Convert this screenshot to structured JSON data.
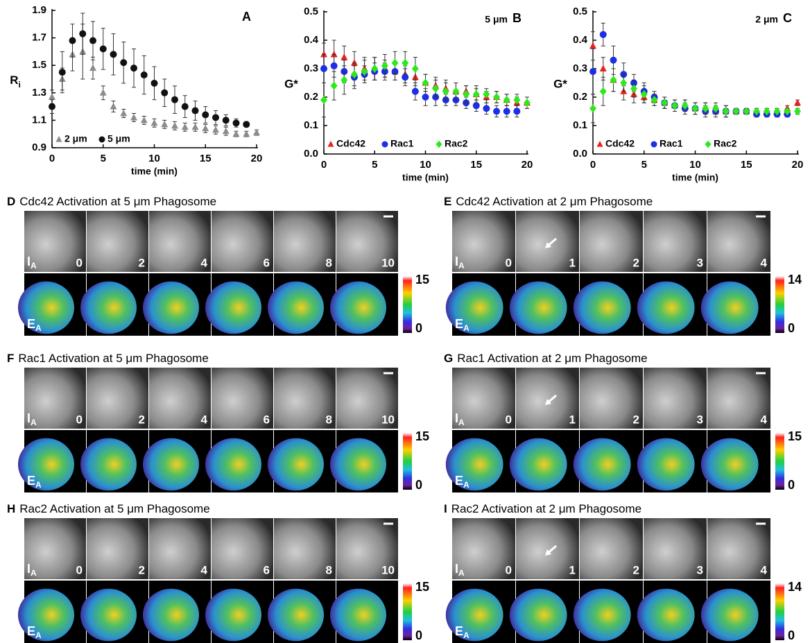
{
  "chart_data": [
    {
      "type": "scatter",
      "label": "A",
      "xlabel": "time (min)",
      "ylabel": "R",
      "ylabel_sub": "i",
      "xlim": [
        0,
        20
      ],
      "xticks": [
        0,
        5,
        10,
        15,
        20
      ],
      "ylim": [
        0.9,
        1.9
      ],
      "yticks": [
        0.9,
        1.1,
        1.3,
        1.5,
        1.7,
        1.9
      ],
      "legend": "lower left",
      "x": [
        0,
        1,
        2,
        3,
        4,
        5,
        6,
        7,
        8,
        9,
        10,
        11,
        12,
        13,
        14,
        15,
        16,
        17,
        18,
        19,
        20
      ],
      "series": [
        {
          "name": "2 μm",
          "color": "#8c8c8c",
          "marker": "triangle",
          "values": [
            1.27,
            1.4,
            1.58,
            1.6,
            1.48,
            1.3,
            1.2,
            1.15,
            1.12,
            1.1,
            1.08,
            1.07,
            1.06,
            1.05,
            1.05,
            1.04,
            1.03,
            1.02,
            1.0,
            1.0,
            1.01
          ],
          "errors": [
            0.05,
            0.08,
            0.12,
            0.2,
            0.08,
            0.05,
            0.04,
            0.03,
            0.03,
            0.03,
            0.03,
            0.03,
            0.03,
            0.03,
            0.03,
            0.03,
            0.03,
            0.03,
            0.02,
            0.02,
            0.02
          ]
        },
        {
          "name": "5 μm",
          "color": "#111111",
          "marker": "circle",
          "values": [
            1.2,
            1.45,
            1.68,
            1.73,
            1.68,
            1.62,
            1.58,
            1.52,
            1.48,
            1.43,
            1.37,
            1.3,
            1.25,
            1.2,
            1.17,
            1.14,
            1.12,
            1.1,
            1.08,
            1.07,
            null
          ],
          "errors": [
            0.05,
            0.15,
            0.12,
            0.15,
            0.14,
            0.15,
            0.15,
            0.15,
            0.14,
            0.14,
            0.12,
            0.1,
            0.1,
            0.08,
            0.07,
            0.06,
            0.05,
            0.04,
            0.03,
            0.02,
            null
          ]
        }
      ]
    },
    {
      "type": "scatter",
      "label": "B",
      "annotation": "5 μm",
      "xlabel": "time (min)",
      "ylabel": "G*",
      "xlim": [
        0,
        20
      ],
      "xticks": [
        0,
        5,
        10,
        15,
        20
      ],
      "ylim": [
        0,
        0.5
      ],
      "yticks": [
        {
          "value": 0,
          "label": "0.0"
        },
        0.1,
        0.2,
        0.3,
        0.4,
        0.5
      ],
      "legend": "lower left",
      "x": [
        0,
        1,
        2,
        3,
        4,
        5,
        6,
        7,
        8,
        9,
        10,
        11,
        12,
        13,
        14,
        15,
        16,
        17,
        18,
        19,
        20
      ],
      "series": [
        {
          "name": "Cdc42",
          "color": "#e8221c",
          "marker": "triangle",
          "values": [
            0.35,
            0.35,
            0.34,
            0.32,
            0.3,
            0.3,
            0.3,
            0.29,
            0.28,
            0.27,
            0.25,
            0.24,
            0.23,
            0.22,
            0.22,
            0.21,
            0.2,
            0.2,
            0.19,
            0.18,
            0.18
          ],
          "errors": [
            0.04,
            0.05,
            0.04,
            0.04,
            0.04,
            0.04,
            0.03,
            0.03,
            0.03,
            0.03,
            0.03,
            0.03,
            0.03,
            0.03,
            0.02,
            0.02,
            0.02,
            0.02,
            0.02,
            0.02,
            0.02
          ]
        },
        {
          "name": "Rac1",
          "color": "#1c2ee8",
          "marker": "circle",
          "values": [
            0.3,
            0.31,
            0.29,
            0.27,
            0.28,
            0.29,
            0.29,
            0.29,
            0.27,
            0.22,
            0.2,
            0.2,
            0.19,
            0.19,
            0.18,
            0.17,
            0.16,
            0.15,
            0.15,
            0.15,
            null
          ],
          "errors": [
            0.05,
            0.04,
            0.04,
            0.04,
            0.03,
            0.03,
            0.03,
            0.03,
            0.03,
            0.03,
            0.03,
            0.03,
            0.02,
            0.02,
            0.02,
            0.02,
            0.02,
            0.02,
            0.02,
            0.02,
            null
          ]
        },
        {
          "name": "Rac2",
          "color": "#2ee81c",
          "marker": "diamond",
          "values": [
            0.19,
            0.24,
            0.26,
            0.28,
            0.29,
            0.3,
            0.31,
            0.32,
            0.32,
            0.3,
            0.25,
            0.23,
            0.22,
            0.22,
            0.21,
            0.21,
            0.21,
            0.2,
            0.19,
            0.19,
            0.18
          ],
          "errors": [
            0.06,
            0.05,
            0.05,
            0.04,
            0.04,
            0.04,
            0.04,
            0.04,
            0.04,
            0.04,
            0.03,
            0.03,
            0.03,
            0.03,
            0.03,
            0.03,
            0.02,
            0.02,
            0.02,
            0.02,
            0.02
          ]
        }
      ]
    },
    {
      "type": "scatter",
      "label": "C",
      "annotation": "2 μm",
      "xlabel": "time (min)",
      "ylabel": "G*",
      "xlim": [
        0,
        20
      ],
      "xticks": [
        0,
        5,
        10,
        15,
        20
      ],
      "ylim": [
        0,
        0.5
      ],
      "yticks": [
        {
          "value": 0,
          "label": "0.0"
        },
        0.1,
        0.2,
        0.3,
        0.4,
        0.5
      ],
      "legend": "lower left",
      "x": [
        0,
        1,
        2,
        3,
        4,
        5,
        6,
        7,
        8,
        9,
        10,
        11,
        12,
        13,
        14,
        15,
        16,
        17,
        18,
        19,
        20
      ],
      "series": [
        {
          "name": "Cdc42",
          "color": "#e8221c",
          "marker": "triangle",
          "values": [
            0.38,
            0.3,
            0.26,
            0.22,
            0.21,
            0.2,
            0.19,
            0.18,
            0.17,
            0.17,
            0.16,
            0.16,
            0.15,
            0.15,
            0.15,
            0.15,
            0.15,
            0.15,
            0.15,
            0.16,
            0.18
          ],
          "errors": [
            0.05,
            0.04,
            0.04,
            0.03,
            0.03,
            0.02,
            0.02,
            0.02,
            0.02,
            0.02,
            0.02,
            0.02,
            0.02,
            0.02,
            0.01,
            0.01,
            0.01,
            0.01,
            0.01,
            0.01,
            0.01
          ]
        },
        {
          "name": "Rac1",
          "color": "#1c2ee8",
          "marker": "circle",
          "values": [
            0.29,
            0.42,
            0.33,
            0.28,
            0.25,
            0.22,
            0.2,
            0.18,
            0.17,
            0.16,
            0.16,
            0.15,
            0.15,
            0.15,
            0.15,
            0.15,
            0.14,
            0.14,
            0.14,
            0.14,
            null
          ],
          "errors": [
            0.08,
            0.04,
            0.05,
            0.04,
            0.03,
            0.03,
            0.02,
            0.02,
            0.02,
            0.02,
            0.02,
            0.02,
            0.01,
            0.01,
            0.01,
            0.01,
            0.01,
            0.01,
            0.01,
            0.01,
            null
          ]
        },
        {
          "name": "Rac2",
          "color": "#2ee81c",
          "marker": "diamond",
          "values": [
            0.16,
            0.22,
            0.26,
            0.25,
            0.23,
            0.21,
            0.19,
            0.18,
            0.17,
            0.17,
            0.16,
            0.16,
            0.16,
            0.15,
            0.15,
            0.15,
            0.15,
            0.15,
            0.15,
            0.15,
            0.15
          ],
          "errors": [
            0.05,
            0.05,
            0.04,
            0.03,
            0.03,
            0.03,
            0.02,
            0.02,
            0.02,
            0.02,
            0.02,
            0.02,
            0.02,
            0.02,
            0.01,
            0.01,
            0.01,
            0.01,
            0.01,
            0.01,
            0.01
          ]
        }
      ]
    }
  ],
  "panels": [
    {
      "label": "D",
      "title": "Cdc42 Activation at 5 μm Phagosome",
      "frames": [
        "0",
        "2",
        "4",
        "6",
        "8",
        "10"
      ],
      "row_labels": [
        [
          "I",
          "A"
        ],
        [
          "E",
          "A"
        ]
      ],
      "colorbar": [
        15,
        0
      ]
    },
    {
      "label": "E",
      "title": "Cdc42 Activation at 2 μm Phagosome",
      "frames": [
        "0",
        "1",
        "2",
        "3",
        "4"
      ],
      "row_labels": [
        [
          "I",
          "A"
        ],
        [
          "E",
          "A"
        ]
      ],
      "colorbar": [
        14,
        0
      ]
    },
    {
      "label": "F",
      "title": "Rac1 Activation at 5 μm Phagosome",
      "frames": [
        "0",
        "2",
        "4",
        "6",
        "8",
        "10"
      ],
      "row_labels": [
        [
          "I",
          "A"
        ],
        [
          "E",
          "A"
        ]
      ],
      "colorbar": [
        15,
        0
      ]
    },
    {
      "label": "G",
      "title": "Rac1 Activation at 2 μm Phagosome",
      "frames": [
        "0",
        "1",
        "2",
        "3",
        "4"
      ],
      "row_labels": [
        [
          "I",
          "A"
        ],
        [
          "E",
          "A"
        ]
      ],
      "colorbar": [
        15,
        0
      ]
    },
    {
      "label": "H",
      "title": "Rac2 Activation at 5 μm Phagosome",
      "frames": [
        "0",
        "2",
        "4",
        "6",
        "8",
        "10"
      ],
      "row_labels": [
        [
          "I",
          "A"
        ],
        [
          "E",
          "A"
        ]
      ],
      "colorbar": [
        15,
        0
      ]
    },
    {
      "label": "I",
      "title": "Rac2 Activation at 2 μm Phagosome",
      "frames": [
        "0",
        "1",
        "2",
        "3",
        "4"
      ],
      "row_labels": [
        [
          "I",
          "A"
        ],
        [
          "E",
          "A"
        ]
      ],
      "colorbar": [
        14,
        0
      ]
    }
  ]
}
